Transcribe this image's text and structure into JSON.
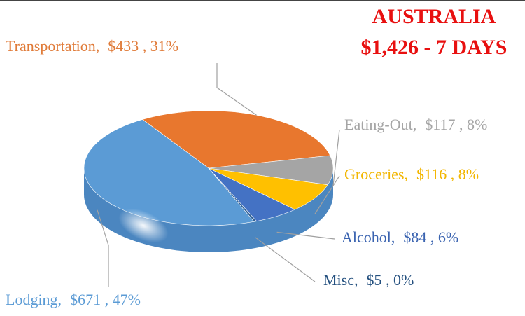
{
  "chart_data": {
    "type": "pie",
    "title": "AUSTRALIA",
    "subtitle": "$1,426  -  7 DAYS",
    "categories": [
      "Transportation,",
      "Eating-Out,",
      "Groceries,",
      "Alcohol,",
      "Misc,",
      "Lodging,"
    ],
    "values": [
      433,
      117,
      116,
      84,
      5,
      671
    ],
    "value_labels": [
      "$433 , 31%",
      "$117 , 8%",
      "$116 , 8%",
      "$84 , 6%",
      "$5 , 0%",
      "$671 , 47%"
    ],
    "colors": [
      "#e8772e",
      "#a5a5a5",
      "#ffc000",
      "#4472c4",
      "#2f5f94",
      "#5b9bd5"
    ],
    "label_colors": [
      "#e07b39",
      "#a5a5a5",
      "#f2b600",
      "#3a63b0",
      "#24507f",
      "#5b9bd5"
    ]
  }
}
